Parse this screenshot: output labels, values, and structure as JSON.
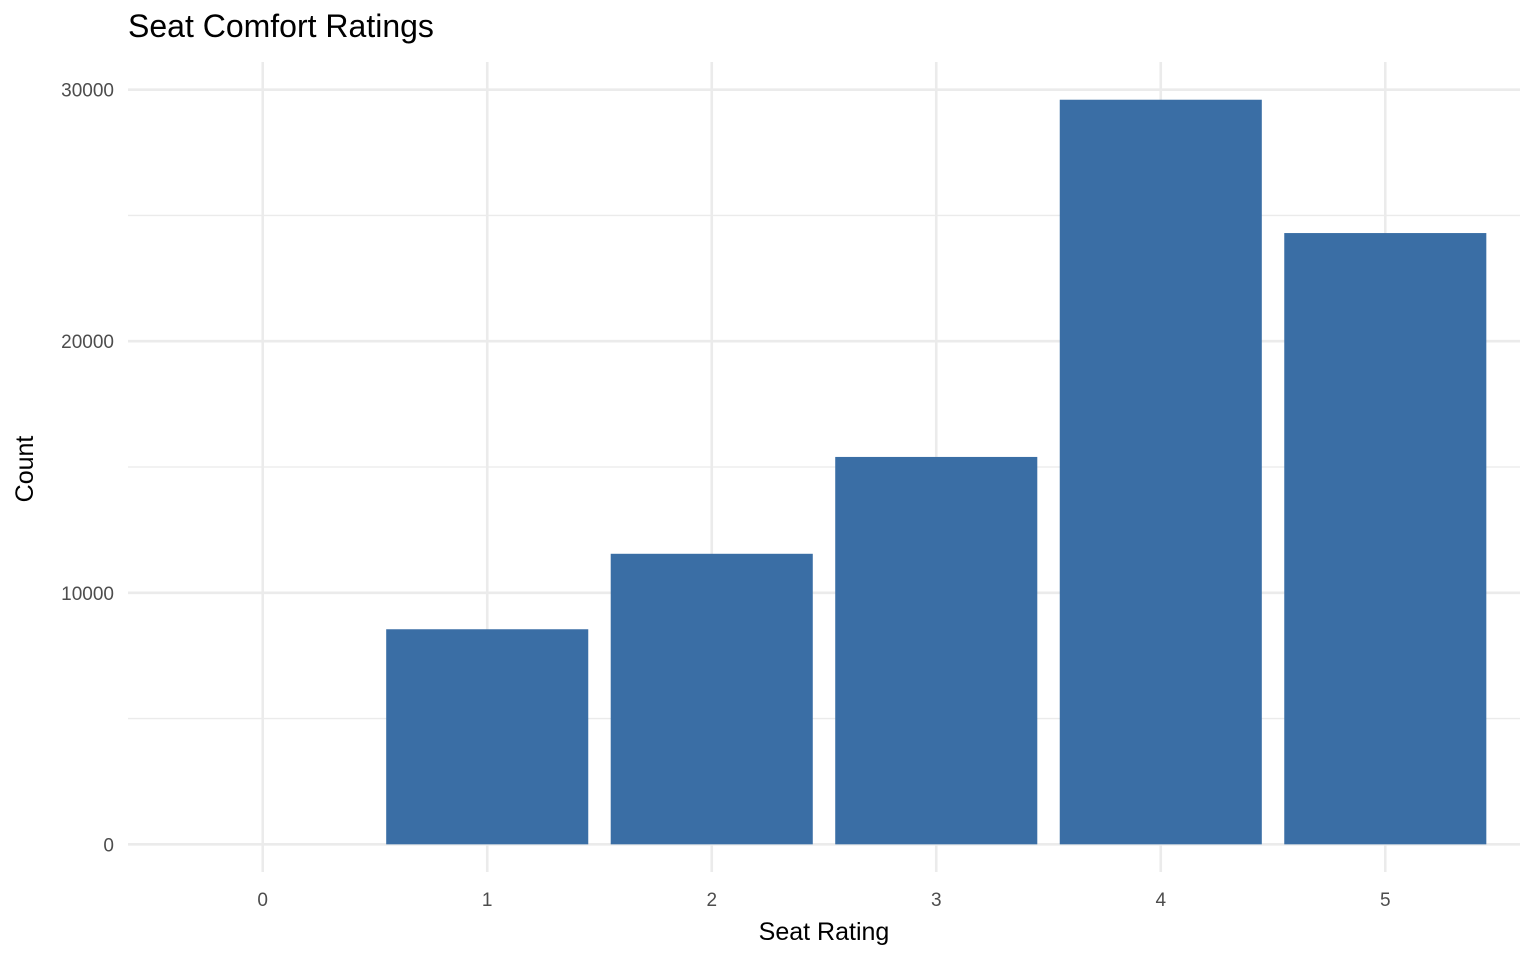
{
  "chart_data": {
    "type": "bar",
    "title": "Seat Comfort Ratings",
    "xlabel": "Seat Rating",
    "ylabel": "Count",
    "categories": [
      "0",
      "1",
      "2",
      "3",
      "4",
      "5"
    ],
    "values": [
      0,
      8550,
      11550,
      15400,
      29600,
      24300
    ],
    "ylim": [
      -1100,
      31100
    ],
    "y_ticks": [
      0,
      10000,
      20000,
      30000
    ],
    "y_minor_ticks": [
      5000,
      15000,
      25000
    ],
    "y_tick_labels": [
      "0",
      "10000",
      "20000",
      "30000"
    ],
    "bar_color": "#3a6ea5",
    "grid": true,
    "grid_color": "#ebebeb",
    "legend": "none"
  }
}
